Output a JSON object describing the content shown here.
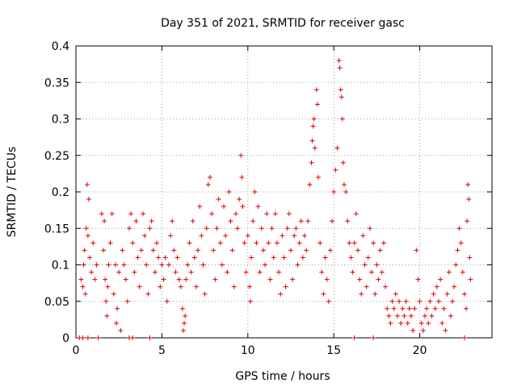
{
  "chart_data": {
    "type": "scatter",
    "title": "Day 351 of 2021, SRMTID for receiver gasc",
    "xlabel": "GPS time / hours",
    "ylabel": "SRMTID / TECUs",
    "xlim": [
      0,
      24.2
    ],
    "ylim": [
      0,
      0.4
    ],
    "xticks": [
      0,
      5,
      10,
      15,
      20
    ],
    "xtick_labels": [
      "0",
      "5",
      "10",
      "15",
      "20"
    ],
    "yticks": [
      0,
      0.05,
      0.1,
      0.15,
      0.2,
      0.25,
      0.3,
      0.35,
      0.4
    ],
    "ytick_labels": [
      "0",
      "0.05",
      "0.1",
      "0.15",
      "0.2",
      "0.25",
      "0.3",
      "0.35",
      "0.4"
    ],
    "grid": true,
    "marker": "+",
    "series": [
      {
        "name": "SRMTID",
        "color": "#e00000",
        "points": [
          [
            0.2,
            0.0
          ],
          [
            0.4,
            0.0
          ],
          [
            0.7,
            0.0
          ],
          [
            1.3,
            0.0
          ],
          [
            3.1,
            0.0
          ],
          [
            3.3,
            0.0
          ],
          [
            4.3,
            0.0
          ],
          [
            16.2,
            0.0
          ],
          [
            17.3,
            0.0
          ],
          [
            22.6,
            0.0
          ],
          [
            0.3,
            0.08
          ],
          [
            0.4,
            0.07
          ],
          [
            0.45,
            0.1
          ],
          [
            0.5,
            0.12
          ],
          [
            0.55,
            0.06
          ],
          [
            0.6,
            0.15
          ],
          [
            0.65,
            0.21
          ],
          [
            0.7,
            0.14
          ],
          [
            0.75,
            0.19
          ],
          [
            0.8,
            0.11
          ],
          [
            0.9,
            0.09
          ],
          [
            1.0,
            0.13
          ],
          [
            1.1,
            0.08
          ],
          [
            1.2,
            0.1
          ],
          [
            1.5,
            0.17
          ],
          [
            1.6,
            0.12
          ],
          [
            1.65,
            0.16
          ],
          [
            1.7,
            0.08
          ],
          [
            1.75,
            0.05
          ],
          [
            1.8,
            0.03
          ],
          [
            1.85,
            0.07
          ],
          [
            1.9,
            0.1
          ],
          [
            2.0,
            0.13
          ],
          [
            2.1,
            0.17
          ],
          [
            2.2,
            0.06
          ],
          [
            2.3,
            0.1
          ],
          [
            2.35,
            0.02
          ],
          [
            2.4,
            0.04
          ],
          [
            2.5,
            0.09
          ],
          [
            2.6,
            0.01
          ],
          [
            2.7,
            0.12
          ],
          [
            2.8,
            0.1
          ],
          [
            2.9,
            0.08
          ],
          [
            3.0,
            0.05
          ],
          [
            3.1,
            0.15
          ],
          [
            3.2,
            0.17
          ],
          [
            3.3,
            0.13
          ],
          [
            3.4,
            0.09
          ],
          [
            3.5,
            0.16
          ],
          [
            3.6,
            0.11
          ],
          [
            3.7,
            0.07
          ],
          [
            3.8,
            0.12
          ],
          [
            3.9,
            0.17
          ],
          [
            4.0,
            0.14
          ],
          [
            4.1,
            0.1
          ],
          [
            4.2,
            0.06
          ],
          [
            4.3,
            0.15
          ],
          [
            4.4,
            0.16
          ],
          [
            4.5,
            0.12
          ],
          [
            4.6,
            0.09
          ],
          [
            4.7,
            0.13
          ],
          [
            4.8,
            0.11
          ],
          [
            4.9,
            0.07
          ],
          [
            5.0,
            0.1
          ],
          [
            5.1,
            0.08
          ],
          [
            5.2,
            0.11
          ],
          [
            5.3,
            0.05
          ],
          [
            5.4,
            0.1
          ],
          [
            5.5,
            0.14
          ],
          [
            5.6,
            0.16
          ],
          [
            5.7,
            0.12
          ],
          [
            5.8,
            0.09
          ],
          [
            5.9,
            0.11
          ],
          [
            6.0,
            0.08
          ],
          [
            6.1,
            0.07
          ],
          [
            6.2,
            0.04
          ],
          [
            6.25,
            0.01
          ],
          [
            6.3,
            0.02
          ],
          [
            6.35,
            0.03
          ],
          [
            6.4,
            0.08
          ],
          [
            6.5,
            0.1
          ],
          [
            6.6,
            0.13
          ],
          [
            6.7,
            0.09
          ],
          [
            6.8,
            0.16
          ],
          [
            6.9,
            0.11
          ],
          [
            7.0,
            0.07
          ],
          [
            7.1,
            0.12
          ],
          [
            7.2,
            0.18
          ],
          [
            7.3,
            0.14
          ],
          [
            7.4,
            0.1
          ],
          [
            7.5,
            0.06
          ],
          [
            7.6,
            0.15
          ],
          [
            7.7,
            0.21
          ],
          [
            7.8,
            0.22
          ],
          [
            7.9,
            0.17
          ],
          [
            8.0,
            0.12
          ],
          [
            8.1,
            0.08
          ],
          [
            8.2,
            0.15
          ],
          [
            8.3,
            0.19
          ],
          [
            8.4,
            0.13
          ],
          [
            8.5,
            0.1
          ],
          [
            8.6,
            0.18
          ],
          [
            8.7,
            0.14
          ],
          [
            8.8,
            0.09
          ],
          [
            8.9,
            0.2
          ],
          [
            9.0,
            0.16
          ],
          [
            9.1,
            0.12
          ],
          [
            9.2,
            0.07
          ],
          [
            9.3,
            0.17
          ],
          [
            9.4,
            0.15
          ],
          [
            9.5,
            0.19
          ],
          [
            9.6,
            0.25
          ],
          [
            9.65,
            0.22
          ],
          [
            9.7,
            0.18
          ],
          [
            9.8,
            0.13
          ],
          [
            9.9,
            0.09
          ],
          [
            10.0,
            0.14
          ],
          [
            10.1,
            0.07
          ],
          [
            10.15,
            0.05
          ],
          [
            10.2,
            0.11
          ],
          [
            10.3,
            0.16
          ],
          [
            10.4,
            0.2
          ],
          [
            10.5,
            0.13
          ],
          [
            10.6,
            0.18
          ],
          [
            10.7,
            0.09
          ],
          [
            10.8,
            0.15
          ],
          [
            10.9,
            0.12
          ],
          [
            11.0,
            0.1
          ],
          [
            11.1,
            0.17
          ],
          [
            11.2,
            0.13
          ],
          [
            11.3,
            0.08
          ],
          [
            11.4,
            0.15
          ],
          [
            11.5,
            0.11
          ],
          [
            11.6,
            0.17
          ],
          [
            11.7,
            0.13
          ],
          [
            11.8,
            0.09
          ],
          [
            11.9,
            0.06
          ],
          [
            12.0,
            0.14
          ],
          [
            12.1,
            0.11
          ],
          [
            12.2,
            0.07
          ],
          [
            12.3,
            0.15
          ],
          [
            12.4,
            0.17
          ],
          [
            12.5,
            0.12
          ],
          [
            12.6,
            0.08
          ],
          [
            12.7,
            0.14
          ],
          [
            12.8,
            0.15
          ],
          [
            12.9,
            0.1
          ],
          [
            13.0,
            0.13
          ],
          [
            13.1,
            0.16
          ],
          [
            13.2,
            0.11
          ],
          [
            13.3,
            0.14
          ],
          [
            13.4,
            0.12
          ],
          [
            13.5,
            0.16
          ],
          [
            13.6,
            0.21
          ],
          [
            13.7,
            0.24
          ],
          [
            13.75,
            0.27
          ],
          [
            13.8,
            0.29
          ],
          [
            13.85,
            0.3
          ],
          [
            13.9,
            0.26
          ],
          [
            14.0,
            0.34
          ],
          [
            14.05,
            0.32
          ],
          [
            14.1,
            0.22
          ],
          [
            14.2,
            0.13
          ],
          [
            14.3,
            0.09
          ],
          [
            14.4,
            0.06
          ],
          [
            14.5,
            0.11
          ],
          [
            14.6,
            0.08
          ],
          [
            14.7,
            0.05
          ],
          [
            14.8,
            0.12
          ],
          [
            14.9,
            0.16
          ],
          [
            15.0,
            0.2
          ],
          [
            15.1,
            0.23
          ],
          [
            15.2,
            0.26
          ],
          [
            15.3,
            0.38
          ],
          [
            15.35,
            0.37
          ],
          [
            15.4,
            0.34
          ],
          [
            15.45,
            0.33
          ],
          [
            15.5,
            0.3
          ],
          [
            15.55,
            0.24
          ],
          [
            15.6,
            0.21
          ],
          [
            15.7,
            0.2
          ],
          [
            15.8,
            0.16
          ],
          [
            15.9,
            0.13
          ],
          [
            16.0,
            0.11
          ],
          [
            16.1,
            0.09
          ],
          [
            16.2,
            0.13
          ],
          [
            16.3,
            0.17
          ],
          [
            16.4,
            0.12
          ],
          [
            16.5,
            0.08
          ],
          [
            16.6,
            0.06
          ],
          [
            16.7,
            0.14
          ],
          [
            16.8,
            0.1
          ],
          [
            16.9,
            0.07
          ],
          [
            17.0,
            0.11
          ],
          [
            17.1,
            0.15
          ],
          [
            17.2,
            0.09
          ],
          [
            17.3,
            0.13
          ],
          [
            17.4,
            0.06
          ],
          [
            17.5,
            0.1
          ],
          [
            17.6,
            0.08
          ],
          [
            17.7,
            0.12
          ],
          [
            17.8,
            0.09
          ],
          [
            17.9,
            0.13
          ],
          [
            18.0,
            0.07
          ],
          [
            18.1,
            0.04
          ],
          [
            18.2,
            0.03
          ],
          [
            18.3,
            0.02
          ],
          [
            18.4,
            0.05
          ],
          [
            18.5,
            0.04
          ],
          [
            18.6,
            0.06
          ],
          [
            18.7,
            0.03
          ],
          [
            18.8,
            0.05
          ],
          [
            18.9,
            0.02
          ],
          [
            19.0,
            0.04
          ],
          [
            19.1,
            0.03
          ],
          [
            19.2,
            0.05
          ],
          [
            19.3,
            0.02
          ],
          [
            19.4,
            0.04
          ],
          [
            19.5,
            0.03
          ],
          [
            19.6,
            0.01
          ],
          [
            19.7,
            0.04
          ],
          [
            19.8,
            0.12
          ],
          [
            19.9,
            0.08
          ],
          [
            20.0,
            0.05
          ],
          [
            20.1,
            0.02
          ],
          [
            20.2,
            0.01
          ],
          [
            20.3,
            0.03
          ],
          [
            20.4,
            0.04
          ],
          [
            20.5,
            0.02
          ],
          [
            20.6,
            0.05
          ],
          [
            20.7,
            0.03
          ],
          [
            20.8,
            0.06
          ],
          [
            20.9,
            0.04
          ],
          [
            21.0,
            0.07
          ],
          [
            21.1,
            0.05
          ],
          [
            21.2,
            0.08
          ],
          [
            21.3,
            0.02
          ],
          [
            21.4,
            0.04
          ],
          [
            21.5,
            0.01
          ],
          [
            21.6,
            0.06
          ],
          [
            21.7,
            0.09
          ],
          [
            21.8,
            0.03
          ],
          [
            21.9,
            0.05
          ],
          [
            22.0,
            0.07
          ],
          [
            22.1,
            0.1
          ],
          [
            22.2,
            0.12
          ],
          [
            22.3,
            0.15
          ],
          [
            22.4,
            0.13
          ],
          [
            22.5,
            0.09
          ],
          [
            22.6,
            0.06
          ],
          [
            22.7,
            0.04
          ],
          [
            22.75,
            0.16
          ],
          [
            22.8,
            0.21
          ],
          [
            22.85,
            0.19
          ],
          [
            22.9,
            0.11
          ],
          [
            22.95,
            0.08
          ]
        ]
      }
    ]
  }
}
